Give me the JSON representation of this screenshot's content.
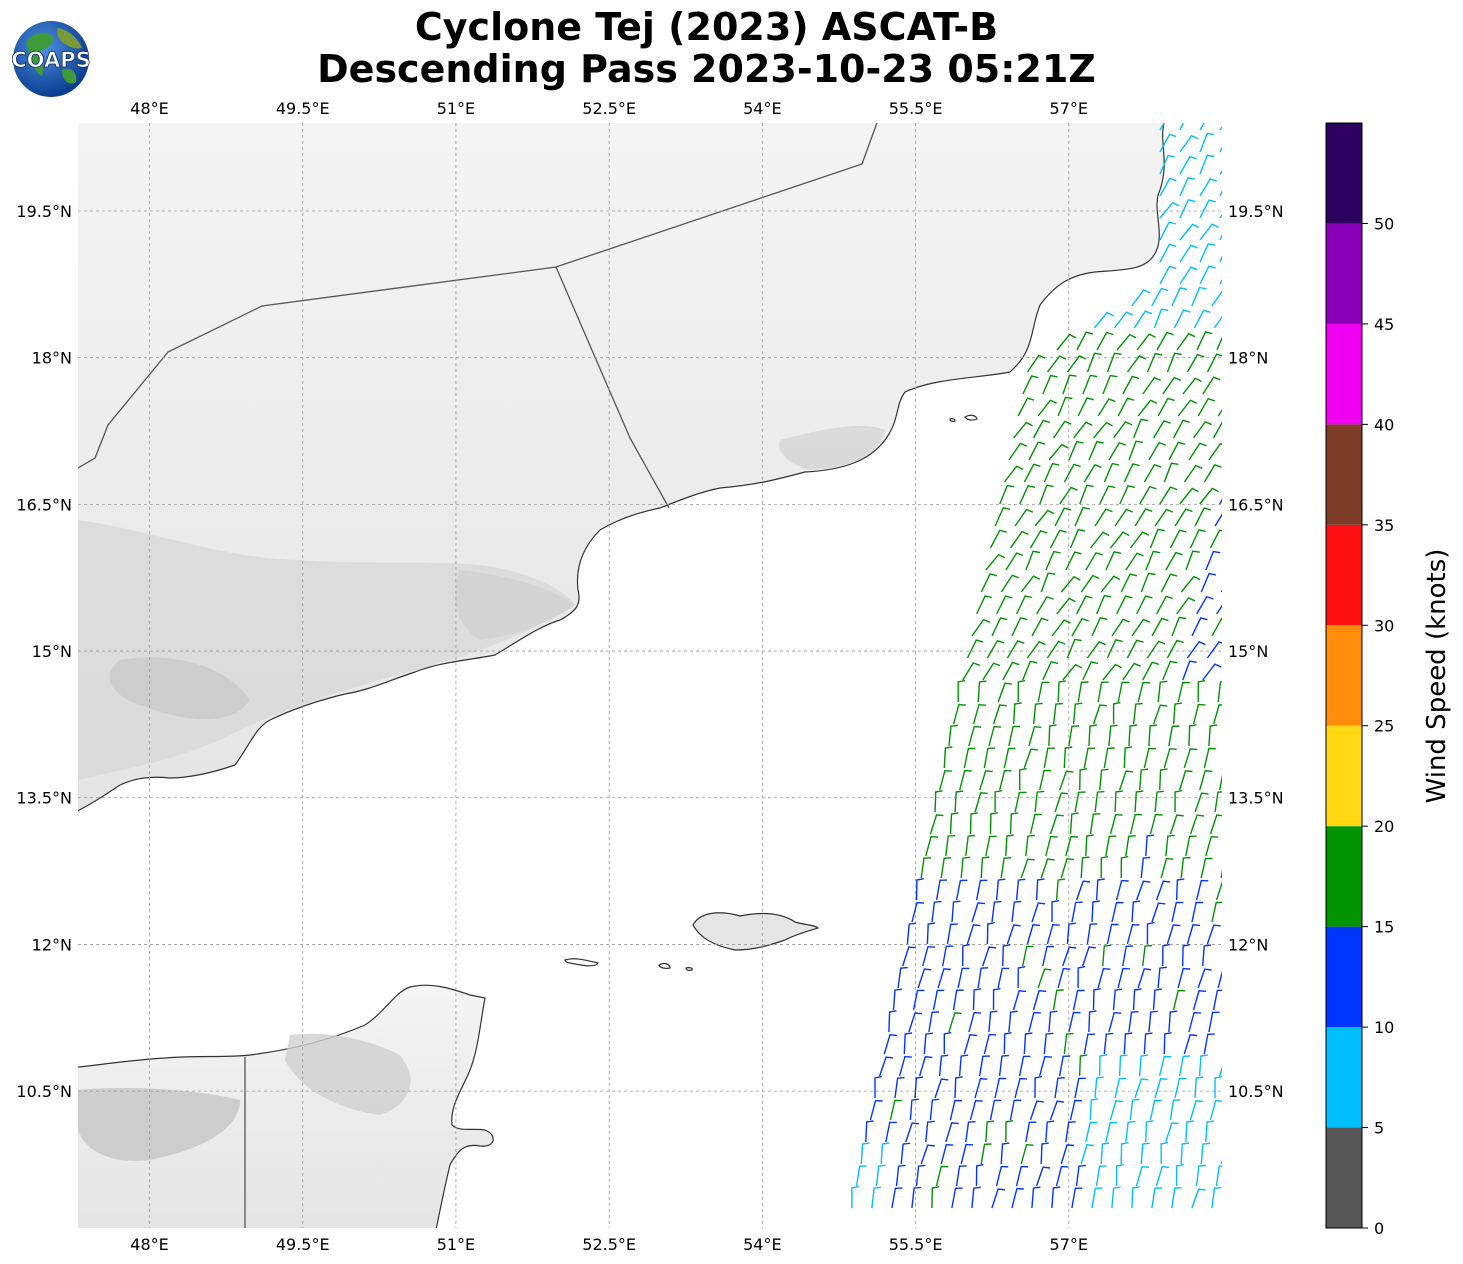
{
  "title": {
    "line1": "Cyclone Tej (2023) ASCAT-B",
    "line2": "Descending Pass 2023-10-23 05:21Z"
  },
  "logo": {
    "text": "COAPS",
    "icon": "globe-logo"
  },
  "map": {
    "lon_ticks": [
      "48°E",
      "49.5°E",
      "51°E",
      "52.5°E",
      "54°E",
      "55.5°E",
      "57°E"
    ],
    "lat_ticks": [
      "19.5°N",
      "18°N",
      "16.5°N",
      "15°N",
      "13.5°N",
      "12°N",
      "10.5°N"
    ],
    "lon_values": [
      48,
      49.5,
      51,
      52.5,
      54,
      55.5,
      57
    ],
    "lat_values": [
      19.5,
      18,
      16.5,
      15,
      13.5,
      12,
      10.5
    ],
    "extent": {
      "lon_min": 47.3,
      "lon_max": 58.5,
      "lat_min": 9.1,
      "lat_max": 20.4
    },
    "gridlines": true
  },
  "colorbar": {
    "label": "Wind Speed (knots)",
    "tick_labels": [
      "0",
      "5",
      "10",
      "15",
      "20",
      "25",
      "30",
      "35",
      "40",
      "45",
      "50"
    ],
    "bins": [
      {
        "from": 0,
        "to": 5,
        "color": "#575757"
      },
      {
        "from": 5,
        "to": 10,
        "color": "#00bfff"
      },
      {
        "from": 10,
        "to": 15,
        "color": "#0035ff"
      },
      {
        "from": 15,
        "to": 20,
        "color": "#009300"
      },
      {
        "from": 20,
        "to": 25,
        "color": "#ffd712"
      },
      {
        "from": 25,
        "to": 30,
        "color": "#ff8c0a"
      },
      {
        "from": 30,
        "to": 35,
        "color": "#ff1010"
      },
      {
        "from": 35,
        "to": 40,
        "color": "#7f3c28"
      },
      {
        "from": 40,
        "to": 45,
        "color": "#f000f0"
      },
      {
        "from": 45,
        "to": 50,
        "color": "#8a00b8"
      },
      {
        "from": 50,
        "to": 55,
        "color": "#2c005e"
      }
    ]
  }
}
